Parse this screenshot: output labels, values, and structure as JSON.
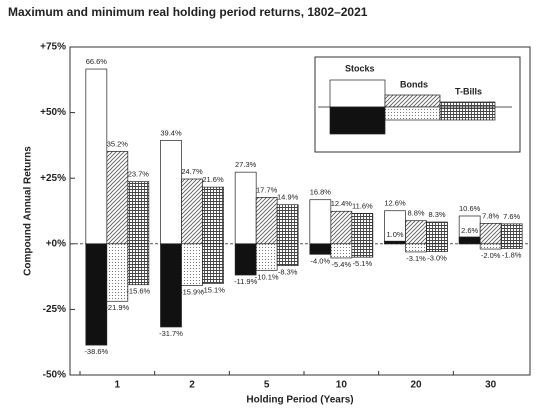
{
  "chart_data": {
    "type": "bar",
    "title": "Maximum and minimum real holding period returns, 1802–2021",
    "x_label": "Holding Period (Years)",
    "y_label": "Compound Annual Returns",
    "categories": [
      "1",
      "2",
      "5",
      "10",
      "20",
      "30"
    ],
    "ylim": [
      -50,
      75
    ],
    "yticks": [
      {
        "value": 75,
        "label": "+75%"
      },
      {
        "value": 50,
        "label": "+50%"
      },
      {
        "value": 25,
        "label": "+25%"
      },
      {
        "value": 0,
        "label": "+0%"
      },
      {
        "value": -25,
        "label": "-25%"
      },
      {
        "value": -50,
        "label": "-50%"
      }
    ],
    "series": [
      {
        "name": "Stocks",
        "values": [
          66.6,
          39.4,
          27.3,
          16.8,
          12.6,
          10.6
        ],
        "value_labels": [
          "66.6%",
          "39.4%",
          "27.3%",
          "16.8%",
          "12.6%",
          "10.6%"
        ],
        "min_values": [
          -38.6,
          -31.7,
          -11.9,
          -4.0,
          1.0,
          2.6
        ],
        "min_value_labels": [
          "-38.6%",
          "-31.7%",
          "-11.9%",
          "-4.0%",
          "1.0%",
          "2.6%"
        ]
      },
      {
        "name": "Bonds",
        "values": [
          35.2,
          24.7,
          17.7,
          12.4,
          8.8,
          7.8
        ],
        "value_labels": [
          "35.2%",
          "24.7%",
          "17.7%",
          "12.4%",
          "8.8%",
          "7.8%"
        ],
        "min_values": [
          -21.9,
          -15.9,
          -10.1,
          -5.4,
          -3.1,
          -2.0
        ],
        "min_value_labels": [
          "-21.9%",
          "-15.9%",
          "-10.1%",
          "-5.4%",
          "-3.1%",
          "-2.0%"
        ]
      },
      {
        "name": "T-Bills",
        "values": [
          23.7,
          21.6,
          14.9,
          11.6,
          8.3,
          7.6
        ],
        "value_labels": [
          "23.7%",
          "21.6%",
          "14.9%",
          "11.6%",
          "8.3%",
          "7.6%"
        ],
        "min_values": [
          -15.6,
          -15.1,
          -8.3,
          -5.1,
          -3.0,
          -1.8
        ],
        "min_value_labels": [
          "-15.6%",
          "-15.1%",
          "-8.3%",
          "-5.1%",
          "-3.0%",
          "-1.8%"
        ]
      }
    ]
  }
}
